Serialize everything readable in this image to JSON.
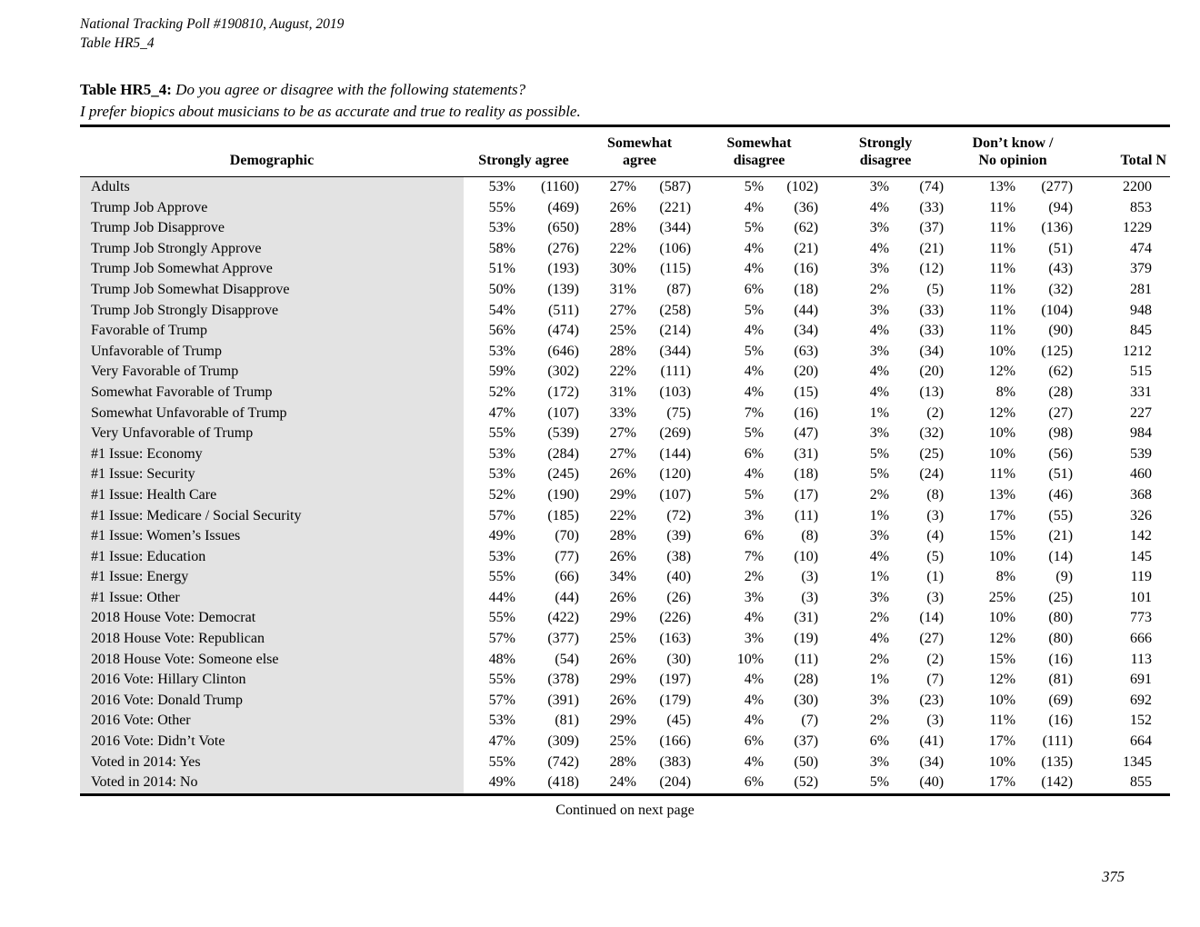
{
  "document": {
    "poll_line": "National Tracking Poll #190810, August, 2019",
    "table_line": "Table HR5_4",
    "title_label": "Table HR5_4:",
    "title_question": "Do you agree or disagree with the following statements?",
    "title_statement": "I prefer biopics about musicians to be as accurate and true to reality as possible.",
    "continued_note": "Continued on next page",
    "page_number": "375"
  },
  "table": {
    "header": {
      "demographic": "Demographic",
      "groups": [
        {
          "lines": [
            "Strongly agree"
          ]
        },
        {
          "lines": [
            "Somewhat",
            "agree"
          ]
        },
        {
          "lines": [
            "Somewhat",
            "disagree"
          ]
        },
        {
          "lines": [
            "Strongly",
            "disagree"
          ]
        },
        {
          "lines": [
            "Don’t know /",
            "No opinion"
          ]
        }
      ],
      "total": "Total N"
    },
    "rows": [
      [
        "Adults",
        "53%",
        "(1160)",
        "27%",
        "(587)",
        "5%",
        "(102)",
        "3%",
        "(74)",
        "13%",
        "(277)",
        "2200"
      ],
      [
        "Trump Job Approve",
        "55%",
        "(469)",
        "26%",
        "(221)",
        "4%",
        "(36)",
        "4%",
        "(33)",
        "11%",
        "(94)",
        "853"
      ],
      [
        "Trump Job Disapprove",
        "53%",
        "(650)",
        "28%",
        "(344)",
        "5%",
        "(62)",
        "3%",
        "(37)",
        "11%",
        "(136)",
        "1229"
      ],
      [
        "Trump Job Strongly Approve",
        "58%",
        "(276)",
        "22%",
        "(106)",
        "4%",
        "(21)",
        "4%",
        "(21)",
        "11%",
        "(51)",
        "474"
      ],
      [
        "Trump Job Somewhat Approve",
        "51%",
        "(193)",
        "30%",
        "(115)",
        "4%",
        "(16)",
        "3%",
        "(12)",
        "11%",
        "(43)",
        "379"
      ],
      [
        "Trump Job Somewhat Disapprove",
        "50%",
        "(139)",
        "31%",
        "(87)",
        "6%",
        "(18)",
        "2%",
        "(5)",
        "11%",
        "(32)",
        "281"
      ],
      [
        "Trump Job Strongly Disapprove",
        "54%",
        "(511)",
        "27%",
        "(258)",
        "5%",
        "(44)",
        "3%",
        "(33)",
        "11%",
        "(104)",
        "948"
      ],
      [
        "Favorable of Trump",
        "56%",
        "(474)",
        "25%",
        "(214)",
        "4%",
        "(34)",
        "4%",
        "(33)",
        "11%",
        "(90)",
        "845"
      ],
      [
        "Unfavorable of Trump",
        "53%",
        "(646)",
        "28%",
        "(344)",
        "5%",
        "(63)",
        "3%",
        "(34)",
        "10%",
        "(125)",
        "1212"
      ],
      [
        "Very Favorable of Trump",
        "59%",
        "(302)",
        "22%",
        "(111)",
        "4%",
        "(20)",
        "4%",
        "(20)",
        "12%",
        "(62)",
        "515"
      ],
      [
        "Somewhat Favorable of Trump",
        "52%",
        "(172)",
        "31%",
        "(103)",
        "4%",
        "(15)",
        "4%",
        "(13)",
        "8%",
        "(28)",
        "331"
      ],
      [
        "Somewhat Unfavorable of Trump",
        "47%",
        "(107)",
        "33%",
        "(75)",
        "7%",
        "(16)",
        "1%",
        "(2)",
        "12%",
        "(27)",
        "227"
      ],
      [
        "Very Unfavorable of Trump",
        "55%",
        "(539)",
        "27%",
        "(269)",
        "5%",
        "(47)",
        "3%",
        "(32)",
        "10%",
        "(98)",
        "984"
      ],
      [
        "#1 Issue: Economy",
        "53%",
        "(284)",
        "27%",
        "(144)",
        "6%",
        "(31)",
        "5%",
        "(25)",
        "10%",
        "(56)",
        "539"
      ],
      [
        "#1 Issue: Security",
        "53%",
        "(245)",
        "26%",
        "(120)",
        "4%",
        "(18)",
        "5%",
        "(24)",
        "11%",
        "(51)",
        "460"
      ],
      [
        "#1 Issue: Health Care",
        "52%",
        "(190)",
        "29%",
        "(107)",
        "5%",
        "(17)",
        "2%",
        "(8)",
        "13%",
        "(46)",
        "368"
      ],
      [
        "#1 Issue: Medicare / Social Security",
        "57%",
        "(185)",
        "22%",
        "(72)",
        "3%",
        "(11)",
        "1%",
        "(3)",
        "17%",
        "(55)",
        "326"
      ],
      [
        "#1 Issue: Women’s Issues",
        "49%",
        "(70)",
        "28%",
        "(39)",
        "6%",
        "(8)",
        "3%",
        "(4)",
        "15%",
        "(21)",
        "142"
      ],
      [
        "#1 Issue: Education",
        "53%",
        "(77)",
        "26%",
        "(38)",
        "7%",
        "(10)",
        "4%",
        "(5)",
        "10%",
        "(14)",
        "145"
      ],
      [
        "#1 Issue: Energy",
        "55%",
        "(66)",
        "34%",
        "(40)",
        "2%",
        "(3)",
        "1%",
        "(1)",
        "8%",
        "(9)",
        "119"
      ],
      [
        "#1 Issue: Other",
        "44%",
        "(44)",
        "26%",
        "(26)",
        "3%",
        "(3)",
        "3%",
        "(3)",
        "25%",
        "(25)",
        "101"
      ],
      [
        "2018 House Vote: Democrat",
        "55%",
        "(422)",
        "29%",
        "(226)",
        "4%",
        "(31)",
        "2%",
        "(14)",
        "10%",
        "(80)",
        "773"
      ],
      [
        "2018 House Vote: Republican",
        "57%",
        "(377)",
        "25%",
        "(163)",
        "3%",
        "(19)",
        "4%",
        "(27)",
        "12%",
        "(80)",
        "666"
      ],
      [
        "2018 House Vote: Someone else",
        "48%",
        "(54)",
        "26%",
        "(30)",
        "10%",
        "(11)",
        "2%",
        "(2)",
        "15%",
        "(16)",
        "113"
      ],
      [
        "2016 Vote: Hillary Clinton",
        "55%",
        "(378)",
        "29%",
        "(197)",
        "4%",
        "(28)",
        "1%",
        "(7)",
        "12%",
        "(81)",
        "691"
      ],
      [
        "2016 Vote: Donald Trump",
        "57%",
        "(391)",
        "26%",
        "(179)",
        "4%",
        "(30)",
        "3%",
        "(23)",
        "10%",
        "(69)",
        "692"
      ],
      [
        "2016 Vote: Other",
        "53%",
        "(81)",
        "29%",
        "(45)",
        "4%",
        "(7)",
        "2%",
        "(3)",
        "11%",
        "(16)",
        "152"
      ],
      [
        "2016 Vote: Didn’t Vote",
        "47%",
        "(309)",
        "25%",
        "(166)",
        "6%",
        "(37)",
        "6%",
        "(41)",
        "17%",
        "(111)",
        "664"
      ],
      [
        "Voted in 2014: Yes",
        "55%",
        "(742)",
        "28%",
        "(383)",
        "4%",
        "(50)",
        "3%",
        "(34)",
        "10%",
        "(135)",
        "1345"
      ],
      [
        "Voted in 2014: No",
        "49%",
        "(418)",
        "24%",
        "(204)",
        "6%",
        "(52)",
        "5%",
        "(40)",
        "17%",
        "(142)",
        "855"
      ]
    ]
  }
}
